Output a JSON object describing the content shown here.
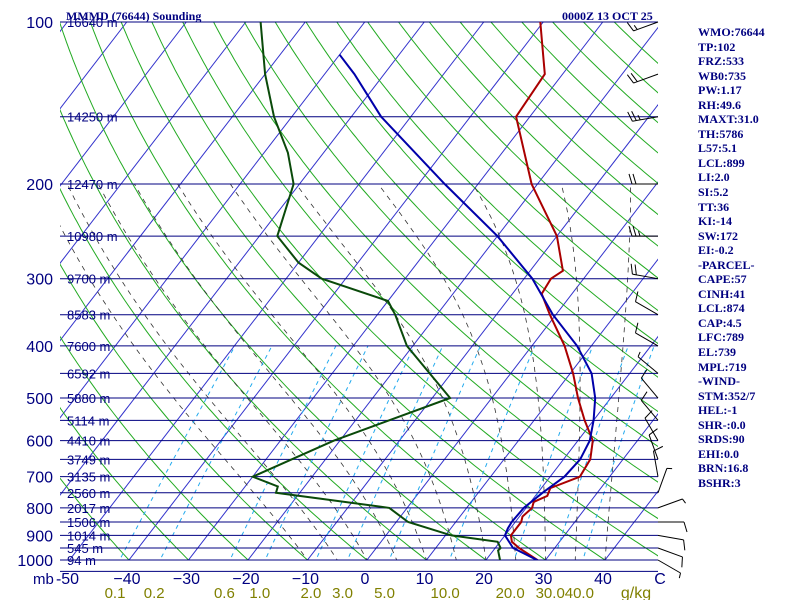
{
  "header": {
    "station_title": "MMMD (76644) Sounding",
    "valid_time": "0000Z 13 OCT 25"
  },
  "indices": [
    "WMO:76644",
    "TP:102",
    "FRZ:533",
    "WB0:735",
    "PW:1.17",
    "RH:49.6",
    "MAXT:31.0",
    "TH:5786",
    "L57:5.1",
    "LCL:899",
    "LI:2.0",
    "SI:5.2",
    "TT:36",
    "KI:-14",
    "SW:172",
    "EI:-0.2",
    "-PARCEL-",
    "CAPE:57",
    "CINH:41",
    "LCL:874",
    "CAP:4.5",
    "LFC:789",
    "EL:739",
    "MPL:719",
    "-WIND-",
    "STM:352/7",
    "HEL:-1",
    "SHR-:0.0",
    "SRDS:90",
    "EHI:0.0",
    "BRN:16.8",
    "BSHR:3"
  ],
  "colors": {
    "isobar": "#000080",
    "isotherm": "#3333cc",
    "dry_adiabat": "#22aa22",
    "moist_adiabat": "#333333",
    "mixing_ratio": "#22aaee",
    "temperature": "#aa0000",
    "dewpoint": "#0a4a0a",
    "parcel": "#0000aa",
    "axis_text": "#000080",
    "mixing_text": "#808000",
    "wind": "#000000"
  },
  "chart_data": {
    "type": "line",
    "title": "MMMD (76644) Sounding",
    "x_axis": {
      "unit": "C",
      "ticks": [
        -50,
        -40,
        -30,
        -20,
        -10,
        0,
        10,
        20,
        30,
        40
      ],
      "tick_labels": [
        "-50",
        "−40",
        "−30",
        "−20",
        "−10",
        "0",
        "10",
        "20",
        "30",
        "40"
      ],
      "end_label": "C",
      "range": [
        -50,
        50
      ]
    },
    "y_axis": {
      "unit": "mb",
      "scale": "log",
      "ticks": [
        100,
        200,
        300,
        400,
        500,
        600,
        700,
        800,
        900,
        1000
      ],
      "range": [
        1000,
        100
      ],
      "unit_label": "mb"
    },
    "height_labels": [
      {
        "p": 100,
        "label": "16640 m"
      },
      {
        "p": 150,
        "label": "14250 m"
      },
      {
        "p": 200,
        "label": "12470 m"
      },
      {
        "p": 250,
        "label": "10980 m"
      },
      {
        "p": 300,
        "label": "9700 m"
      },
      {
        "p": 350,
        "label": "8583 m"
      },
      {
        "p": 400,
        "label": "7600 m"
      },
      {
        "p": 450,
        "label": "6592 m"
      },
      {
        "p": 500,
        "label": "5880 m"
      },
      {
        "p": 550,
        "label": "5114 m"
      },
      {
        "p": 600,
        "label": "4410 m"
      },
      {
        "p": 650,
        "label": "3749 m"
      },
      {
        "p": 700,
        "label": "3135 m"
      },
      {
        "p": 750,
        "label": "2560 m"
      },
      {
        "p": 800,
        "label": "2017 m"
      },
      {
        "p": 850,
        "label": "1506 m"
      },
      {
        "p": 900,
        "label": "1014 m"
      },
      {
        "p": 950,
        "label": "545 m"
      },
      {
        "p": 1000,
        "label": "94 m"
      }
    ],
    "mixing_ratio_labels": {
      "unit": "g/kg",
      "values": [
        "0.1",
        "0.2",
        "0.6",
        "1.0",
        "2.0",
        "3.0",
        "5.0",
        "10.0",
        "20.0",
        "30.0",
        "40.0"
      ],
      "numbers": [
        0.1,
        0.2,
        0.6,
        1.0,
        2.0,
        3.0,
        5.0,
        10.0,
        20.0,
        30.0,
        40.0
      ]
    },
    "series": [
      {
        "name": "",
        "role": "temperature",
        "points": [
          [
            1004,
            29.0
          ],
          [
            950,
            24.0
          ],
          [
            925,
            22.0
          ],
          [
            900,
            21.0
          ],
          [
            850,
            21.0
          ],
          [
            830,
            20.5
          ],
          [
            800,
            21.0
          ],
          [
            780,
            20.5
          ],
          [
            760,
            22.0
          ],
          [
            735,
            21.5
          ],
          [
            700,
            25.0
          ],
          [
            650,
            24.5
          ],
          [
            600,
            22.5
          ],
          [
            550,
            18.5
          ],
          [
            500,
            14.5
          ],
          [
            450,
            10.5
          ],
          [
            400,
            5.5
          ],
          [
            350,
            -1.0
          ],
          [
            320,
            -5.1
          ],
          [
            300,
            -5.5
          ],
          [
            290,
            -4.5
          ],
          [
            250,
            -10.0
          ],
          [
            200,
            -21.0
          ],
          [
            150,
            -32.3
          ],
          [
            125,
            -33.0
          ],
          [
            100,
            -40.5
          ]
        ]
      },
      {
        "name": "",
        "role": "dewpoint",
        "points": [
          [
            1004,
            22.5
          ],
          [
            960,
            20.8
          ],
          [
            950,
            20.9
          ],
          [
            925,
            19.6
          ],
          [
            900,
            11.0
          ],
          [
            850,
            2.0
          ],
          [
            800,
            -3.0
          ],
          [
            750,
            -24.0
          ],
          [
            730,
            -24.5
          ],
          [
            700,
            -30.0
          ],
          [
            600,
            -21.0
          ],
          [
            500,
            -7.0
          ],
          [
            400,
            -21.0
          ],
          [
            350,
            -27.0
          ],
          [
            330,
            -30.0
          ],
          [
            300,
            -44.0
          ],
          [
            280,
            -50.0
          ],
          [
            250,
            -57.0
          ],
          [
            200,
            -61.0
          ],
          [
            175,
            -66.0
          ],
          [
            150,
            -73.0
          ],
          [
            125,
            -80.0
          ],
          [
            100,
            -87.5
          ]
        ]
      },
      {
        "name": "",
        "role": "parcel",
        "points": [
          [
            1004,
            29.0
          ],
          [
            950,
            23.0
          ],
          [
            900,
            20.0
          ],
          [
            874,
            19.6
          ],
          [
            850,
            19.4
          ],
          [
            800,
            19.6
          ],
          [
            750,
            20.8
          ],
          [
            700,
            22.4
          ],
          [
            650,
            22.8
          ],
          [
            600,
            22.0
          ],
          [
            550,
            20.0
          ],
          [
            500,
            17.4
          ],
          [
            450,
            13.6
          ],
          [
            400,
            7.6
          ],
          [
            350,
            -0.5
          ],
          [
            300,
            -8.6
          ],
          [
            250,
            -20.0
          ],
          [
            200,
            -35.6
          ],
          [
            150,
            -55.0
          ],
          [
            125,
            -65.0
          ],
          [
            115,
            -70.0
          ]
        ]
      }
    ],
    "wind_barbs": [
      {
        "p": 1000,
        "dir": 120,
        "spd": 5
      },
      {
        "p": 950,
        "dir": 110,
        "spd": 10
      },
      {
        "p": 900,
        "dir": 100,
        "spd": 10
      },
      {
        "p": 850,
        "dir": 90,
        "spd": 10
      },
      {
        "p": 800,
        "dir": 70,
        "spd": 5
      },
      {
        "p": 750,
        "dir": 20,
        "spd": 5
      },
      {
        "p": 700,
        "dir": 350,
        "spd": 10
      },
      {
        "p": 650,
        "dir": 340,
        "spd": 10
      },
      {
        "p": 600,
        "dir": 330,
        "spd": 10
      },
      {
        "p": 550,
        "dir": 320,
        "spd": 10
      },
      {
        "p": 500,
        "dir": 320,
        "spd": 10
      },
      {
        "p": 450,
        "dir": 310,
        "spd": 5
      },
      {
        "p": 400,
        "dir": 300,
        "spd": 10
      },
      {
        "p": 350,
        "dir": 300,
        "spd": 10
      },
      {
        "p": 300,
        "dir": 280,
        "spd": 20
      },
      {
        "p": 250,
        "dir": 270,
        "spd": 25
      },
      {
        "p": 200,
        "dir": 270,
        "spd": 20
      },
      {
        "p": 150,
        "dir": 260,
        "spd": 25
      },
      {
        "p": 125,
        "dir": 250,
        "spd": 20
      },
      {
        "p": 100,
        "dir": 250,
        "spd": 15
      }
    ]
  }
}
